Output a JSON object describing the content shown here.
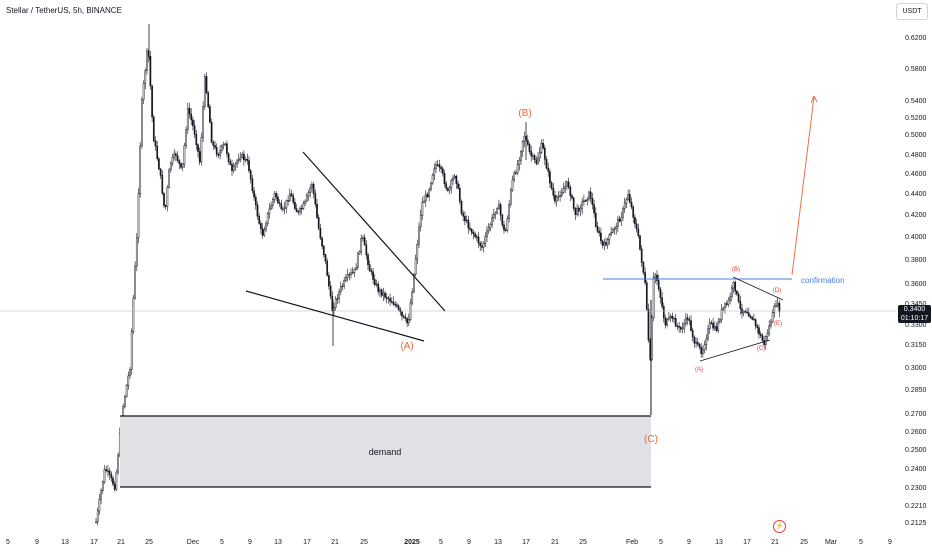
{
  "header": {
    "title": "Stellar / TetherUS, 5h, BINANCE"
  },
  "currency_button": {
    "label": "USDT"
  },
  "last_price": {
    "value": "0.3400",
    "countdown": "01:10:17"
  },
  "event_icon": "lightning-icon",
  "chart_data": {
    "type": "candlestick",
    "title": "Stellar / TetherUS, 5h, BINANCE",
    "y_ticks": [
      "0.6200",
      "0.5800",
      "0.5400",
      "0.5200",
      "0.5000",
      "0.4800",
      "0.4600",
      "0.4400",
      "0.4200",
      "0.4000",
      "0.3800",
      "0.3600",
      "0.3450",
      "0.3300",
      "0.3150",
      "0.3000",
      "0.2850",
      "0.2700",
      "0.2600",
      "0.2500",
      "0.2400",
      "0.2300",
      "0.2210",
      "0.2125"
    ],
    "x_ticks": [
      "5",
      "9",
      "13",
      "17",
      "21",
      "25",
      "Dec",
      "5",
      "9",
      "13",
      "17",
      "21",
      "25",
      "2025",
      "5",
      "9",
      "13",
      "17",
      "21",
      "25",
      "Feb",
      "5",
      "9",
      "13",
      "17",
      "21",
      "25",
      "Mar",
      "5",
      "9"
    ],
    "ylim": [
      0.21,
      0.63
    ],
    "log_scale": true,
    "grid": false,
    "last_price": 0.34,
    "annotations": {
      "wave_labels_major": [
        "(A)",
        "(B)",
        "(C)"
      ],
      "wave_labels_minor": [
        "(A)",
        "(B)",
        "(C)",
        "(D)",
        "(E)"
      ],
      "zone_label": "demand",
      "confirmation_label": "confirmation"
    },
    "colors": {
      "candle": "#131722",
      "annotation": "#f0643a",
      "confirmation": "#4a7fe0",
      "zone": "#e0e1e4"
    }
  }
}
